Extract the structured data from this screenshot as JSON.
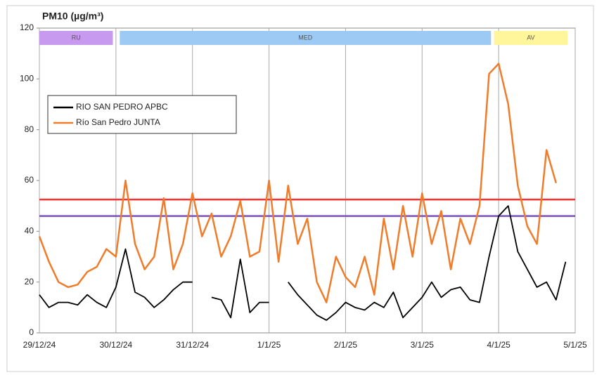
{
  "chart_data": {
    "type": "line",
    "title": "PM10 (µg/m³)",
    "x": [
      0,
      0.125,
      0.25,
      0.375,
      0.5,
      0.625,
      0.75,
      0.875,
      1,
      1.125,
      1.25,
      1.375,
      1.5,
      1.625,
      1.75,
      1.875,
      2,
      2.125,
      2.25,
      2.375,
      2.5,
      2.625,
      2.75,
      2.875,
      3,
      3.125,
      3.25,
      3.375,
      3.5,
      3.625,
      3.75,
      3.875,
      4,
      4.125,
      4.25,
      4.375,
      4.5,
      4.625,
      4.75,
      4.875,
      5,
      5.125,
      5.25,
      5.375,
      5.5,
      5.625,
      5.75,
      5.875,
      6,
      6.125,
      6.25,
      6.375,
      6.5,
      6.625,
      6.75,
      6.875,
      7
    ],
    "series": [
      {
        "name": "RIO SAN PEDRO APBC",
        "color": "#000000",
        "values": [
          15,
          10,
          12,
          12,
          11,
          15,
          12,
          10,
          18,
          33,
          16,
          14,
          10,
          13,
          17,
          20,
          20,
          null,
          14,
          13,
          6,
          29,
          8,
          12,
          12,
          null,
          20,
          15,
          11,
          7,
          5,
          8,
          12,
          10,
          9,
          12,
          10,
          16,
          6,
          10,
          14,
          20,
          14,
          17,
          18,
          13,
          12,
          30,
          46,
          50,
          32,
          25,
          18,
          20,
          13,
          28,
          null
        ]
      },
      {
        "name": "Río San Pedro JUNTA",
        "color": "#f07c2a",
        "values": [
          38,
          28,
          20,
          18,
          19,
          24,
          26,
          33,
          30,
          60,
          35,
          25,
          30,
          53,
          25,
          35,
          55,
          38,
          47,
          30,
          38,
          52,
          30,
          32,
          60,
          28,
          58,
          35,
          45,
          20,
          12,
          30,
          22,
          18,
          30,
          15,
          45,
          25,
          50,
          30,
          55,
          35,
          48,
          25,
          45,
          35,
          50,
          102,
          106,
          90,
          58,
          42,
          35,
          72,
          59,
          null,
          null
        ]
      }
    ],
    "xlim": [
      0,
      7
    ],
    "xticks": [
      {
        "value": 0,
        "label": "29/12/24"
      },
      {
        "value": 1,
        "label": "30/12/24"
      },
      {
        "value": 2,
        "label": "31/12/24"
      },
      {
        "value": 3,
        "label": "1/1/25"
      },
      {
        "value": 4,
        "label": "2/1/25"
      },
      {
        "value": 5,
        "label": "3/1/25"
      },
      {
        "value": 6,
        "label": "4/1/25"
      },
      {
        "value": 7,
        "label": "5/1/25"
      }
    ],
    "ylim": [
      0,
      120
    ],
    "yticks": [
      0,
      20,
      40,
      60,
      80,
      100,
      120
    ],
    "grid": true,
    "legend": "upper left",
    "reference_lines": [
      {
        "value": 52.5,
        "color": "#ff3030"
      },
      {
        "value": 46,
        "color": "#7a4fc0"
      }
    ],
    "periods": [
      {
        "label": "RU",
        "start": 0,
        "end": 0.96,
        "color": "#c79af0"
      },
      {
        "label": "MED",
        "start": 1.05,
        "end": 5.9,
        "color": "#9ccaf5"
      },
      {
        "label": "AV",
        "start": 5.94,
        "end": 6.9,
        "color": "#fff59a"
      }
    ]
  }
}
